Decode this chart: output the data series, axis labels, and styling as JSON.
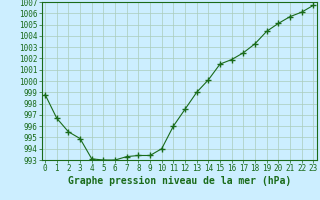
{
  "x": [
    0,
    1,
    2,
    3,
    4,
    5,
    6,
    7,
    8,
    9,
    10,
    11,
    12,
    13,
    14,
    15,
    16,
    17,
    18,
    19,
    20,
    21,
    22,
    23
  ],
  "y": [
    998.8,
    996.7,
    995.5,
    994.9,
    993.1,
    993.0,
    993.0,
    993.3,
    993.4,
    993.4,
    994.0,
    996.0,
    997.5,
    999.0,
    1000.1,
    1001.5,
    1001.9,
    1002.5,
    1003.3,
    1004.4,
    1005.1,
    1005.7,
    1006.1,
    1006.7
  ],
  "ylim": [
    993,
    1007
  ],
  "xlim": [
    -0.3,
    23.3
  ],
  "yticks": [
    993,
    994,
    995,
    996,
    997,
    998,
    999,
    1000,
    1001,
    1002,
    1003,
    1004,
    1005,
    1006,
    1007
  ],
  "xticks": [
    0,
    1,
    2,
    3,
    4,
    5,
    6,
    7,
    8,
    9,
    10,
    11,
    12,
    13,
    14,
    15,
    16,
    17,
    18,
    19,
    20,
    21,
    22,
    23
  ],
  "line_color": "#1a6b1a",
  "marker_color": "#1a6b1a",
  "bg_color": "#cceeff",
  "grid_color": "#aaccbb",
  "xlabel": "Graphe pression niveau de la mer (hPa)",
  "tick_fontsize": 5.5,
  "label_fontsize": 7
}
